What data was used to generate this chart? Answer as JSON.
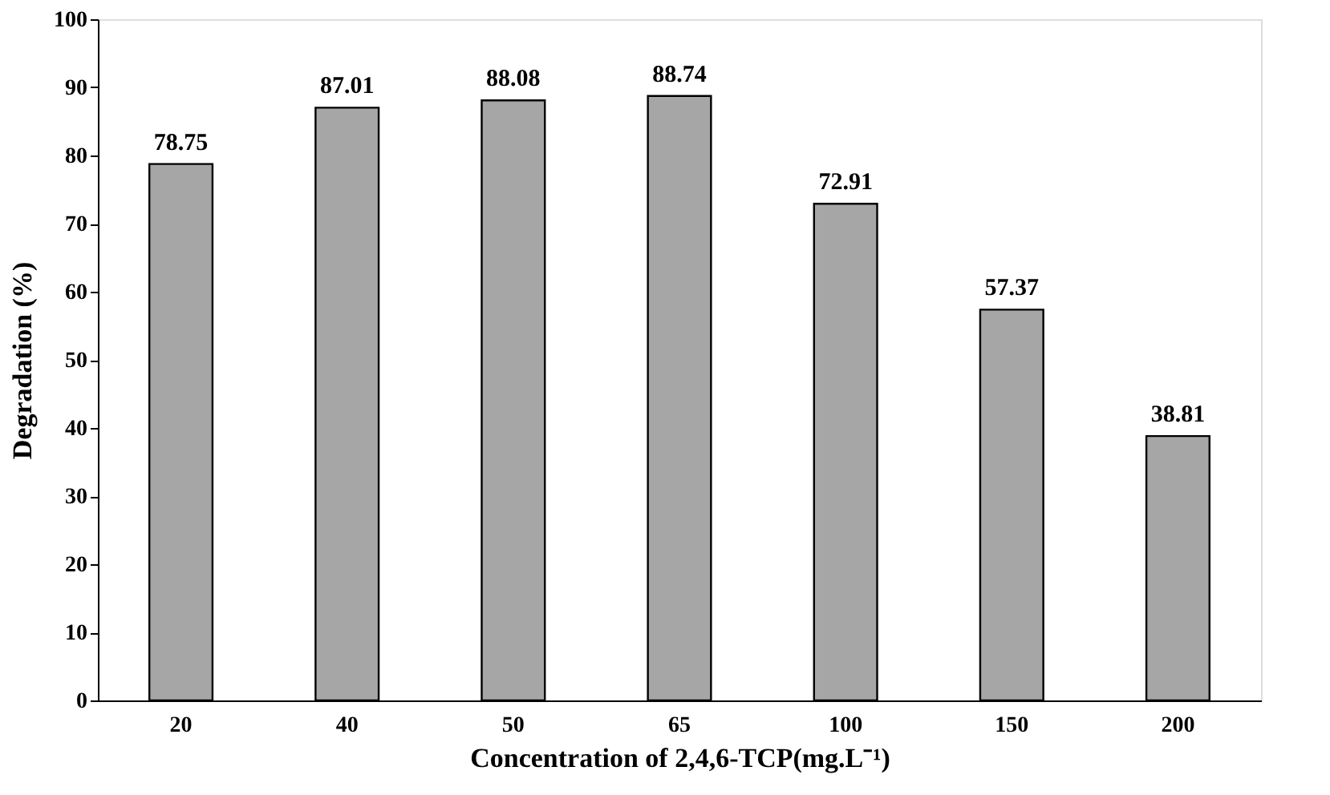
{
  "chart_data": {
    "type": "bar",
    "xlabel": "Concentration of 2,4,6-TCP(mg.L⁻¹)",
    "ylabel": "Degradation (%)",
    "categories": [
      "20",
      "40",
      "50",
      "65",
      "100",
      "150",
      "200"
    ],
    "values": [
      78.75,
      87.01,
      88.08,
      88.74,
      72.91,
      57.37,
      38.81
    ],
    "color": "#a6a6a6",
    "ylim": [
      0,
      100
    ],
    "yticks": [
      0,
      10,
      20,
      30,
      40,
      50,
      60,
      70,
      80,
      90,
      100
    ],
    "grid": false,
    "data_labels": true
  }
}
